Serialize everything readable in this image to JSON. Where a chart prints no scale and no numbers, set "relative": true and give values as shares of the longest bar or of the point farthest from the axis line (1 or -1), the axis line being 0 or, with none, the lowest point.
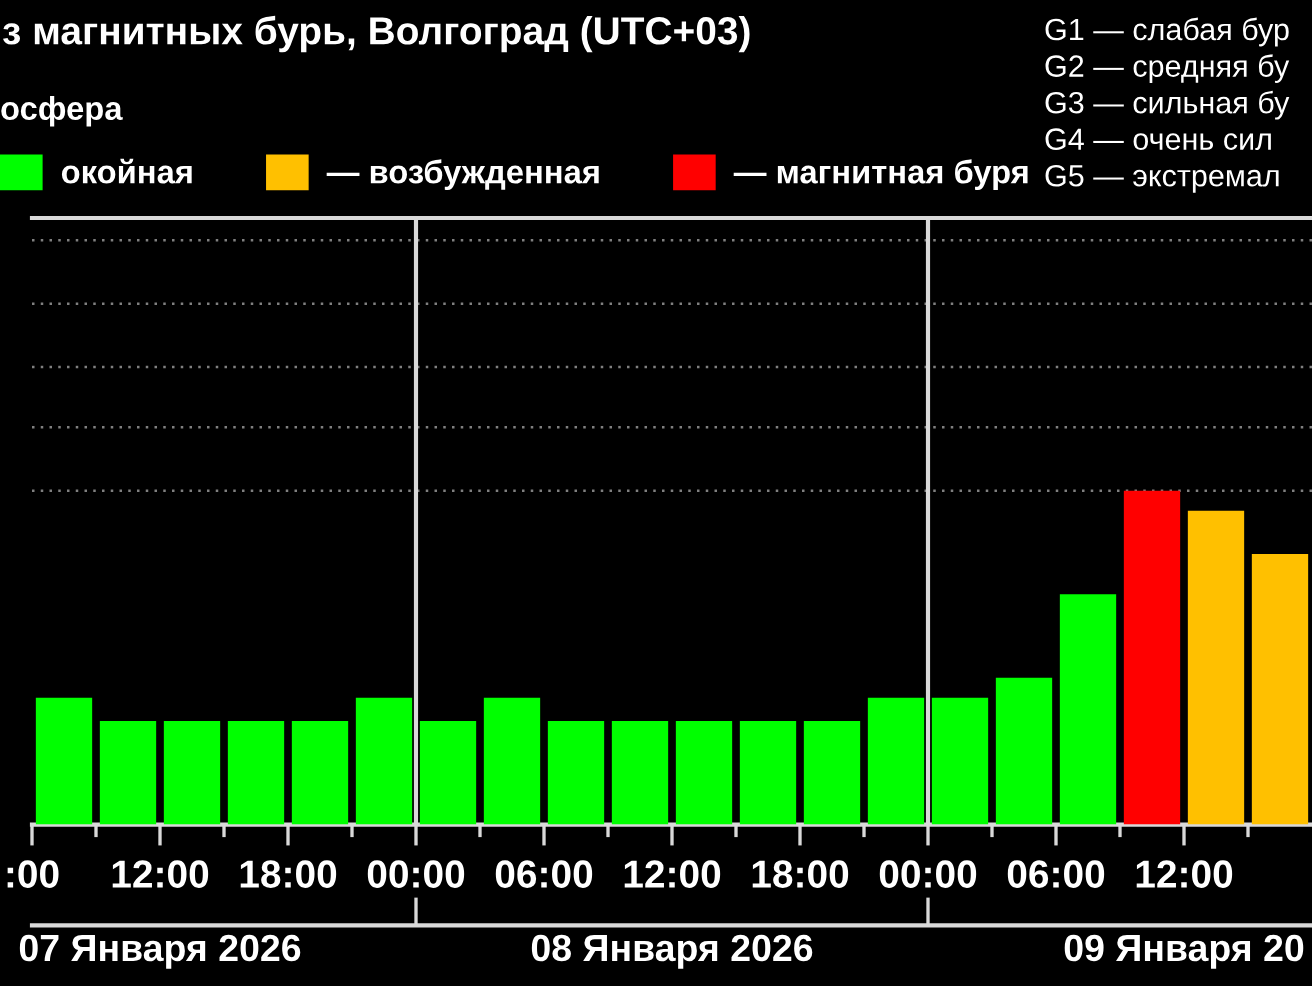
{
  "chart_data": {
    "type": "bar",
    "title": "з магнитных бурь, Волгоград (UTC+03)",
    "legend_title": "осфера",
    "legend": "top left",
    "relative": true,
    "x": [
      "2026-01-07T07:30",
      "2026-01-07T10:30",
      "2026-01-07T13:30",
      "2026-01-07T16:30",
      "2026-01-07T19:30",
      "2026-01-07T22:30",
      "2026-01-08T01:30",
      "2026-01-08T04:30",
      "2026-01-08T07:30",
      "2026-01-08T10:30",
      "2026-01-08T13:30",
      "2026-01-08T16:30",
      "2026-01-08T19:30",
      "2026-01-08T22:30",
      "2026-01-09T01:30",
      "2026-01-09T04:30",
      "2026-01-09T07:30",
      "2026-01-09T10:30",
      "2026-01-09T13:30",
      "2026-01-09T16:30"
    ],
    "series": [
      {
        "name": "окойная",
        "color": "#00ff00",
        "values": [
          0.38,
          0.31,
          0.31,
          0.31,
          0.31,
          0.38,
          0.31,
          0.38,
          0.31,
          0.31,
          0.31,
          0.31,
          0.31,
          0.38,
          0.38,
          0.44,
          0.69,
          null,
          null,
          null
        ]
      },
      {
        "name": "— возбужденная",
        "color": "#ffc000",
        "values": [
          null,
          null,
          null,
          null,
          null,
          null,
          null,
          null,
          null,
          null,
          null,
          null,
          null,
          null,
          null,
          null,
          null,
          null,
          0.94,
          0.81
        ]
      },
      {
        "name": "— магнитная буря",
        "color": "#ff0000",
        "values": [
          null,
          null,
          null,
          null,
          null,
          null,
          null,
          null,
          null,
          null,
          null,
          null,
          null,
          null,
          null,
          null,
          null,
          1,
          null,
          null
        ]
      }
    ],
    "xlim": [
      "2026-01-07T06:00",
      "2026-01-09T18:00"
    ],
    "xticks": [
      {
        "value": "2026-01-07T06:00",
        "label": ":00"
      },
      {
        "value": "2026-01-07T09:00",
        "label": null
      },
      {
        "value": "2026-01-07T12:00",
        "label": "12:00"
      },
      {
        "value": "2026-01-07T15:00",
        "label": null
      },
      {
        "value": "2026-01-07T18:00",
        "label": "18:00"
      },
      {
        "value": "2026-01-07T21:00",
        "label": null
      },
      {
        "value": "2026-01-08T00:00",
        "label": "00:00"
      },
      {
        "value": "2026-01-08T03:00",
        "label": null
      },
      {
        "value": "2026-01-08T06:00",
        "label": "06:00"
      },
      {
        "value": "2026-01-08T09:00",
        "label": null
      },
      {
        "value": "2026-01-08T12:00",
        "label": "12:00"
      },
      {
        "value": "2026-01-08T15:00",
        "label": null
      },
      {
        "value": "2026-01-08T18:00",
        "label": "18:00"
      },
      {
        "value": "2026-01-08T21:00",
        "label": null
      },
      {
        "value": "2026-01-09T00:00",
        "label": "00:00"
      },
      {
        "value": "2026-01-09T03:00",
        "label": null
      },
      {
        "value": "2026-01-09T06:00",
        "label": "06:00"
      },
      {
        "value": "2026-01-09T09:00",
        "label": null
      },
      {
        "value": "2026-01-09T12:00",
        "label": "12:00"
      },
      {
        "value": "2026-01-09T15:00",
        "label": null
      }
    ],
    "x2lim": [
      "2026-01-07T06:00",
      "2026-01-09T18:00"
    ],
    "x2ticks": [
      {
        "value": "2026-01-07T12:00",
        "label": "07 Января 2026"
      },
      {
        "value": "2026-01-08T00:00",
        "label": null
      },
      {
        "value": "2026-01-08T12:00",
        "label": "08 Января 2026"
      },
      {
        "value": "2026-01-09T00:00",
        "label": null
      },
      {
        "value": "2026-01-09T12:00",
        "label": "09 Января 20"
      }
    ],
    "ref_lines": [
      {
        "axis": "y",
        "value": 1,
        "color": "#808080",
        "line_style": "dotted"
      },
      {
        "axis": "y",
        "value": 1.19,
        "color": "#808080",
        "line_style": "dotted"
      },
      {
        "axis": "y",
        "value": 1.37,
        "color": "#808080",
        "line_style": "dotted"
      },
      {
        "axis": "y",
        "value": 1.56,
        "color": "#808080",
        "line_style": "dotted"
      },
      {
        "axis": "y",
        "value": 1.75,
        "color": "#808080",
        "line_style": "dotted"
      },
      {
        "axis": "x",
        "value": "2026-01-08T00:00",
        "color": "#d9d9d9",
        "line_style": "solid"
      },
      {
        "axis": "x",
        "value": "2026-01-09T00:00",
        "color": "#d9d9d9",
        "line_style": "solid"
      }
    ],
    "annotations": [
      "G1 — слабая бур",
      "G2 — средняя бу",
      "G3 — сильная бу",
      "G4 — очень сил",
      "G5 — экстремал"
    ]
  }
}
